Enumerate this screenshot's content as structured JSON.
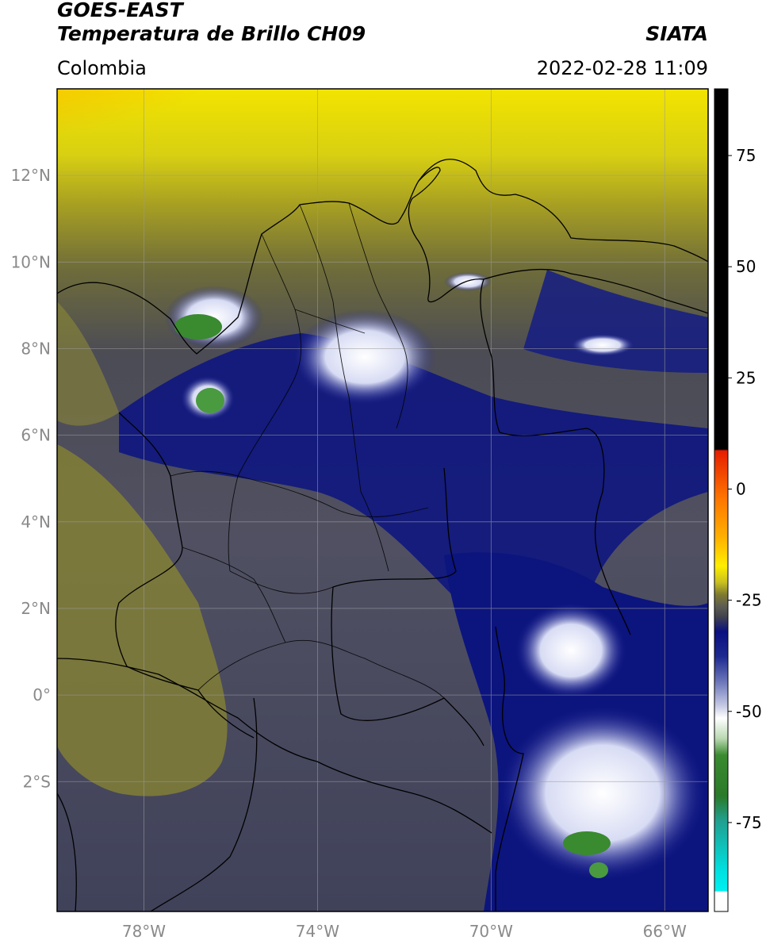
{
  "header": {
    "satellite": "GOES-EAST",
    "product": "Temperatura de Brillo CH09",
    "brand": "SIATA",
    "region": "Colombia",
    "datetime": "2022-02-28 11:09"
  },
  "map": {
    "lon_range": [
      -80,
      -65
    ],
    "lat_range": [
      -5,
      14
    ],
    "lat_ticks": [
      {
        "lat": 12,
        "label": "12°N"
      },
      {
        "lat": 10,
        "label": "10°N"
      },
      {
        "lat": 8,
        "label": "8°N"
      },
      {
        "lat": 6,
        "label": "6°N"
      },
      {
        "lat": 4,
        "label": "4°N"
      },
      {
        "lat": 2,
        "label": "2°N"
      },
      {
        "lat": 0,
        "label": "0°"
      },
      {
        "lat": -2,
        "label": "2°S"
      }
    ],
    "lon_ticks": [
      {
        "lon": -78,
        "label": "78°W"
      },
      {
        "lon": -74,
        "label": "74°W"
      },
      {
        "lon": -70,
        "label": "70°W"
      },
      {
        "lon": -66,
        "label": "66°W"
      }
    ],
    "grid": true
  },
  "colorbar": {
    "range": [
      -95,
      90
    ],
    "ticks": [
      {
        "value": 75,
        "label": "75"
      },
      {
        "value": 50,
        "label": "50"
      },
      {
        "value": 25,
        "label": "25"
      },
      {
        "value": 0,
        "label": "0"
      },
      {
        "value": -25,
        "label": "-25"
      },
      {
        "value": -50,
        "label": "-50"
      },
      {
        "value": -75,
        "label": "-75"
      }
    ],
    "colors": {
      "black": "#000000",
      "red": "#e61e00",
      "orange": "#ff8c00",
      "yellow": "#ffee00",
      "olive": "#8a8a2a",
      "gray": "#4a4a55",
      "navy": "#0a1080",
      "white": "#ffffff",
      "green": "#3a8a30",
      "teal": "#20b0a0",
      "cyan": "#00e0e0"
    }
  }
}
